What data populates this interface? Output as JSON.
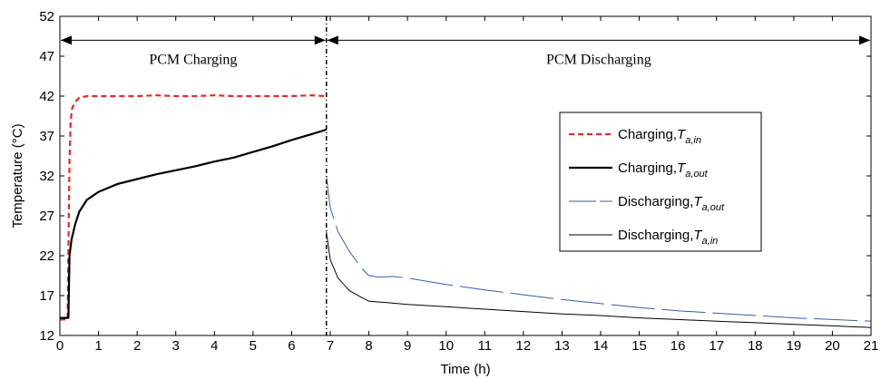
{
  "chart_data": {
    "type": "line",
    "xlabel": "Time (h)",
    "ylabel": "Temperature (°C)",
    "xlim": [
      0,
      21
    ],
    "ylim": [
      12,
      52
    ],
    "x_ticks": [
      0,
      1,
      2,
      3,
      4,
      5,
      6,
      7,
      8,
      9,
      10,
      11,
      12,
      13,
      14,
      15,
      16,
      17,
      18,
      19,
      20,
      21
    ],
    "y_ticks": [
      12,
      17,
      22,
      27,
      32,
      37,
      42,
      47,
      52
    ],
    "grid": false,
    "legend_position": "right",
    "annotations": [
      {
        "text": "PCM Charging",
        "x_range": [
          0,
          6.9
        ],
        "y": 49
      },
      {
        "text": "PCM Discharging",
        "x_range": [
          6.9,
          21
        ],
        "y": 49
      }
    ],
    "phase_boundary_x": 6.9,
    "series": [
      {
        "name": "Charging,",
        "name_symbol": "T",
        "name_subscript": "a,in",
        "color": "#e8262b",
        "style": "dashed",
        "x": [
          0,
          0.2,
          0.22,
          0.25,
          0.28,
          0.32,
          0.4,
          0.5,
          0.7,
          1,
          1.5,
          2,
          2.5,
          3,
          3.5,
          4,
          4.5,
          5,
          5.5,
          6,
          6.5,
          6.9
        ],
        "y": [
          14,
          14,
          23,
          34,
          39,
          40.5,
          41.3,
          41.8,
          42,
          42,
          42,
          42,
          42.1,
          42,
          42,
          42.1,
          42,
          42,
          42,
          42,
          42.1,
          42
        ]
      },
      {
        "name": "Charging,",
        "name_symbol": "T",
        "name_subscript": "a,out",
        "color": "#000000",
        "style": "solid-thick",
        "x": [
          0,
          0.22,
          0.25,
          0.3,
          0.4,
          0.5,
          0.7,
          1,
          1.5,
          2,
          2.5,
          3,
          3.5,
          4,
          4.5,
          5,
          5.5,
          6,
          6.5,
          6.9
        ],
        "y": [
          14.2,
          14.2,
          22,
          24,
          26,
          27.5,
          29,
          30,
          31,
          31.6,
          32.2,
          32.7,
          33.2,
          33.8,
          34.3,
          35,
          35.7,
          36.5,
          37.2,
          37.8
        ]
      },
      {
        "name": "Discharging,",
        "name_symbol": "T",
        "name_subscript": "a,out",
        "color": "#3a5ca8",
        "style": "long-dash",
        "x": [
          6.9,
          7,
          7.2,
          7.5,
          7.8,
          8,
          8.3,
          8.6,
          9,
          9.5,
          10,
          11,
          12,
          13,
          14,
          15,
          16,
          17,
          18,
          19,
          20,
          21
        ],
        "y": [
          32,
          28,
          25,
          22.5,
          20.5,
          19.5,
          19.3,
          19.4,
          19.2,
          18.8,
          18.4,
          17.7,
          17.1,
          16.5,
          16,
          15.5,
          15.1,
          14.8,
          14.5,
          14.2,
          14,
          13.8
        ]
      },
      {
        "name": "Discharging,",
        "name_symbol": "T",
        "name_subscript": "a,in",
        "color": "#000000",
        "style": "solid-thin",
        "x": [
          6.9,
          7,
          7.2,
          7.5,
          7.8,
          8,
          8.5,
          9,
          10,
          11,
          12,
          13,
          14,
          15,
          16,
          17,
          18,
          19,
          20,
          21
        ],
        "y": [
          25,
          21.5,
          19.2,
          17.6,
          16.8,
          16.3,
          16.1,
          15.9,
          15.6,
          15.3,
          15,
          14.7,
          14.5,
          14.2,
          14,
          13.8,
          13.6,
          13.4,
          13.2,
          13
        ]
      }
    ]
  }
}
